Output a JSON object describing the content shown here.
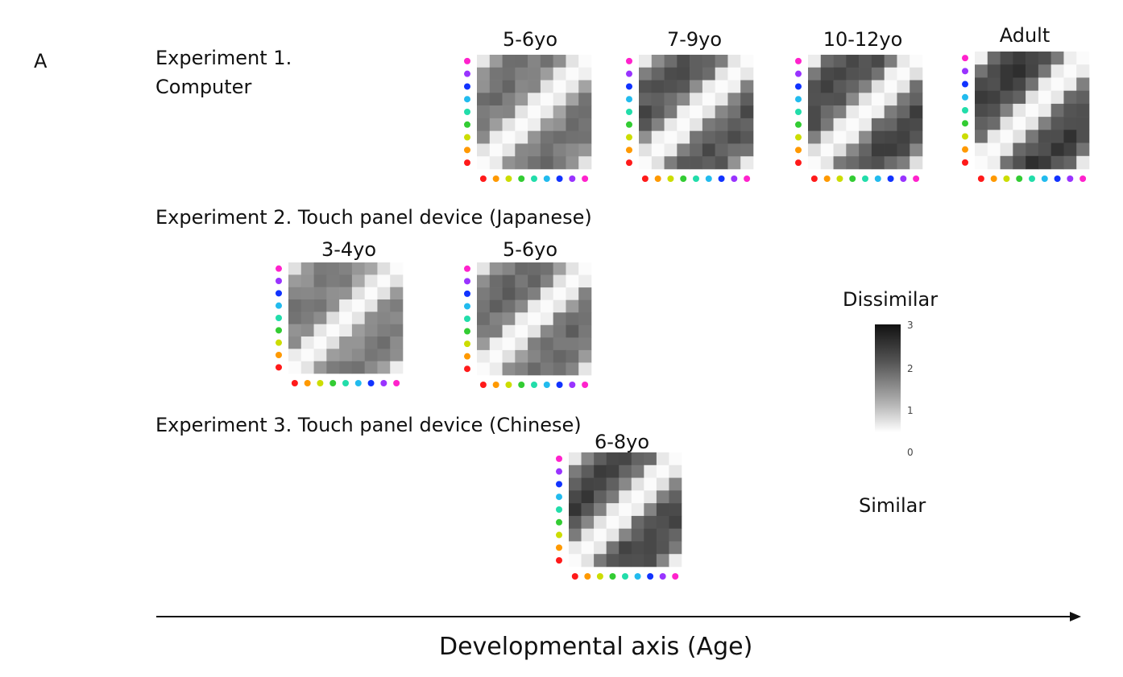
{
  "panel_letter": "A",
  "experiments": [
    {
      "label_line1": "Experiment 1.",
      "label_line2": "Computer"
    },
    {
      "label": "Experiment 2. Touch panel device (Japanese)"
    },
    {
      "label": "Experiment 3. Touch panel device (Chinese)"
    }
  ],
  "color_dots": [
    "#ff1a1a",
    "#ff9900",
    "#ccdd00",
    "#33cc33",
    "#22ddaa",
    "#22bbee",
    "#1133ff",
    "#9933ff",
    "#ff22cc"
  ],
  "chart_data": [
    {
      "type": "heatmap",
      "experiment": 1,
      "title": "5-6yo",
      "size": 9,
      "diag_strength": 0.85,
      "base": 1.9,
      "noise_seed": 1
    },
    {
      "type": "heatmap",
      "experiment": 1,
      "title": "7-9yo",
      "size": 9,
      "diag_strength": 0.95,
      "base": 2.4,
      "noise_seed": 2
    },
    {
      "type": "heatmap",
      "experiment": 1,
      "title": "10-12yo",
      "size": 9,
      "diag_strength": 0.95,
      "base": 2.5,
      "noise_seed": 3
    },
    {
      "type": "heatmap",
      "experiment": 1,
      "title": "Adult",
      "size": 9,
      "diag_strength": 1.0,
      "base": 2.7,
      "noise_seed": 4
    },
    {
      "type": "heatmap",
      "experiment": 2,
      "title": "3-4yo",
      "size": 9,
      "diag_strength": 0.8,
      "base": 1.8,
      "noise_seed": 5
    },
    {
      "type": "heatmap",
      "experiment": 2,
      "title": "5-6yo",
      "size": 9,
      "diag_strength": 0.9,
      "base": 2.1,
      "noise_seed": 6
    },
    {
      "type": "heatmap",
      "experiment": 3,
      "title": "6-8yo",
      "size": 9,
      "diag_strength": 1.0,
      "base": 2.6,
      "noise_seed": 7
    }
  ],
  "legend": {
    "top_label": "Dissimilar",
    "bottom_label": "Similar",
    "ticks": [
      "3",
      "2",
      "1",
      "0"
    ],
    "range": [
      0,
      3
    ]
  },
  "x_axis_label": "Developmental axis (Age)"
}
